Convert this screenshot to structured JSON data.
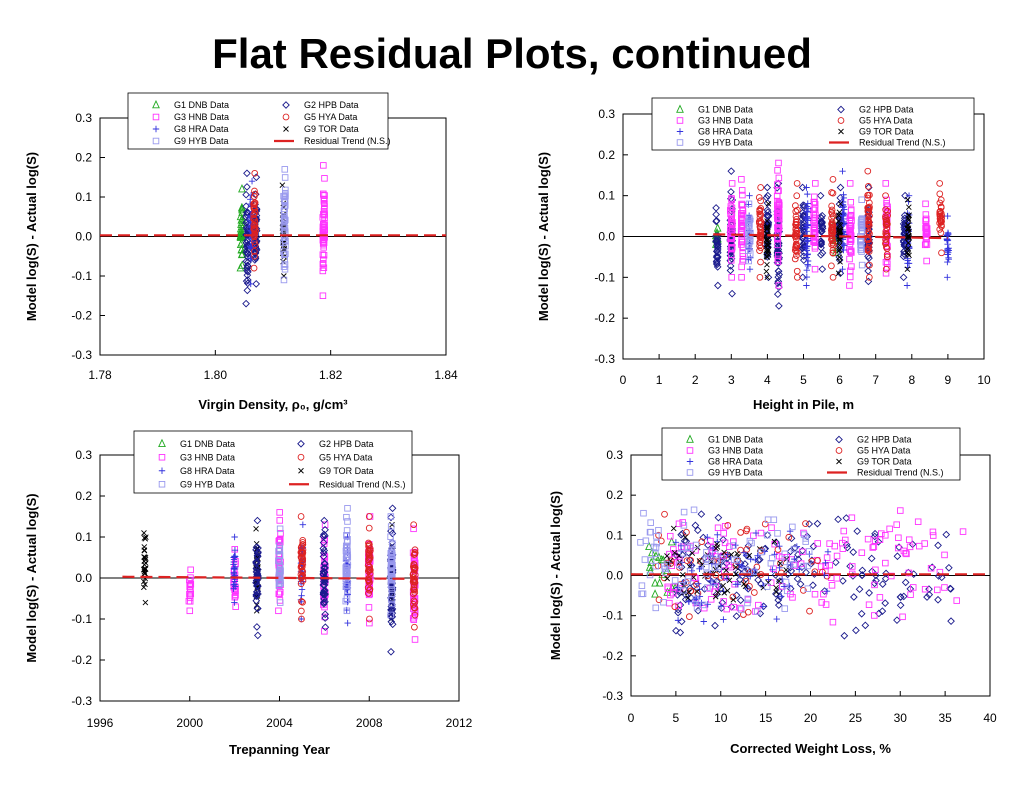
{
  "slide": {
    "title": "Flat Residual Plots, continued"
  },
  "colors": {
    "G1": "#22aa22",
    "G2": "#1a1a8c",
    "G3": "#ff33ff",
    "G8": "#3333dd",
    "G5": "#dd2222",
    "G9TOR": "#000000",
    "G9HYB": "#9999ee",
    "trend": "#dd2222"
  },
  "legend": [
    {
      "key": "G1",
      "label": "G1 DNB Data",
      "marker": "triangle"
    },
    {
      "key": "G2",
      "label": "G2 HPB Data",
      "marker": "diamond"
    },
    {
      "key": "G3",
      "label": "G3 HNB Data",
      "marker": "square"
    },
    {
      "key": "G5",
      "label": "G5 HYA Data",
      "marker": "circle"
    },
    {
      "key": "G8",
      "label": "G8 HRA Data",
      "marker": "plus"
    },
    {
      "key": "G9TOR",
      "label": "G9 TOR Data",
      "marker": "x"
    },
    {
      "key": "G9HYB",
      "label": "G9 HYB Data",
      "marker": "square"
    },
    {
      "key": "trend",
      "label": "Residual Trend (N.S.)",
      "marker": "dash"
    }
  ],
  "chart_data": [
    {
      "type": "scatter",
      "title": "",
      "xlabel": "Virgin Density, ρ₀, g/cm³",
      "ylabel": "Model log(S) - Actual log(S)",
      "xlim": [
        1.78,
        1.84
      ],
      "ylim": [
        -0.3,
        0.3
      ],
      "xticks": [
        "1.78",
        "1.80",
        "1.82",
        "1.84"
      ],
      "yticks": [
        "-0.3",
        "-0.2",
        "-0.1",
        "0.0",
        "0.1",
        "0.2",
        "0.3"
      ],
      "legend_position": "top",
      "series": [
        {
          "key": "G1",
          "columns": [
            {
              "x": 1.8045,
              "ymin": -0.08,
              "ymax": 0.12
            }
          ]
        },
        {
          "key": "G2",
          "columns": [
            {
              "x": 1.8055,
              "ymin": -0.17,
              "ymax": 0.16
            },
            {
              "x": 1.807,
              "ymin": -0.12,
              "ymax": 0.15
            }
          ]
        },
        {
          "key": "G8",
          "columns": [
            {
              "x": 1.8062,
              "ymin": -0.12,
              "ymax": 0.14
            }
          ]
        },
        {
          "key": "G5",
          "columns": [
            {
              "x": 1.8068,
              "ymin": -0.08,
              "ymax": 0.16
            }
          ]
        },
        {
          "key": "G9TOR",
          "columns": [
            {
              "x": 1.8118,
              "ymin": -0.1,
              "ymax": 0.13
            }
          ]
        },
        {
          "key": "G9HYB",
          "columns": [
            {
              "x": 1.812,
              "ymin": -0.11,
              "ymax": 0.17
            }
          ]
        },
        {
          "key": "G3",
          "columns": [
            {
              "x": 1.8188,
              "ymin": -0.15,
              "ymax": 0.18
            }
          ]
        }
      ],
      "trend": [
        {
          "x": 1.78,
          "y": 0.003
        },
        {
          "x": 1.84,
          "y": 0.003
        }
      ]
    },
    {
      "type": "scatter",
      "title": "",
      "xlabel": "Height in Pile, m",
      "ylabel": "Model log(S) - Actual log(S)",
      "xlim": [
        0,
        10
      ],
      "ylim": [
        -0.3,
        0.3
      ],
      "xticks": [
        "0",
        "1",
        "2",
        "3",
        "4",
        "5",
        "6",
        "7",
        "8",
        "9",
        "10"
      ],
      "yticks": [
        "-0.3",
        "-0.2",
        "-0.1",
        "0.0",
        "0.1",
        "0.2",
        "0.3"
      ],
      "legend_position": "top-right",
      "series": [
        {
          "key": "G1",
          "columns": [
            {
              "x": 2.6,
              "ymin": -0.02,
              "ymax": 0.02
            },
            {
              "x": 5.9,
              "ymin": -0.04,
              "ymax": 0.04
            }
          ]
        },
        {
          "key": "G2",
          "columns": [
            {
              "x": 2.6,
              "ymin": -0.12,
              "ymax": 0.07
            },
            {
              "x": 3.0,
              "ymin": -0.14,
              "ymax": 0.16
            },
            {
              "x": 4.0,
              "ymin": -0.1,
              "ymax": 0.12
            },
            {
              "x": 4.3,
              "ymin": -0.17,
              "ymax": 0.13
            },
            {
              "x": 5.0,
              "ymin": -0.1,
              "ymax": 0.12
            },
            {
              "x": 5.5,
              "ymin": -0.08,
              "ymax": 0.1
            },
            {
              "x": 6.0,
              "ymin": -0.09,
              "ymax": 0.12
            },
            {
              "x": 6.8,
              "ymin": -0.11,
              "ymax": 0.12
            },
            {
              "x": 7.8,
              "ymin": -0.1,
              "ymax": 0.1
            }
          ]
        },
        {
          "key": "G3",
          "columns": [
            {
              "x": 3.0,
              "ymin": -0.1,
              "ymax": 0.13
            },
            {
              "x": 3.3,
              "ymin": -0.1,
              "ymax": 0.14
            },
            {
              "x": 4.3,
              "ymin": -0.12,
              "ymax": 0.18
            },
            {
              "x": 5.3,
              "ymin": -0.08,
              "ymax": 0.13
            },
            {
              "x": 6.3,
              "ymin": -0.12,
              "ymax": 0.13
            },
            {
              "x": 7.3,
              "ymin": -0.09,
              "ymax": 0.13
            },
            {
              "x": 8.4,
              "ymin": -0.06,
              "ymax": 0.08
            }
          ]
        },
        {
          "key": "G5",
          "columns": [
            {
              "x": 3.8,
              "ymin": -0.1,
              "ymax": 0.12
            },
            {
              "x": 4.8,
              "ymin": -0.1,
              "ymax": 0.13
            },
            {
              "x": 5.8,
              "ymin": -0.1,
              "ymax": 0.14
            },
            {
              "x": 6.8,
              "ymin": -0.1,
              "ymax": 0.16
            },
            {
              "x": 7.3,
              "ymin": -0.08,
              "ymax": 0.1
            },
            {
              "x": 8.8,
              "ymin": -0.04,
              "ymax": 0.13
            }
          ]
        },
        {
          "key": "G8",
          "columns": [
            {
              "x": 3.5,
              "ymin": -0.08,
              "ymax": 0.1
            },
            {
              "x": 5.1,
              "ymin": -0.12,
              "ymax": 0.12
            },
            {
              "x": 6.1,
              "ymin": -0.08,
              "ymax": 0.16
            },
            {
              "x": 7.9,
              "ymin": -0.12,
              "ymax": 0.1
            },
            {
              "x": 9.0,
              "ymin": -0.1,
              "ymax": 0.05
            }
          ]
        },
        {
          "key": "G9TOR",
          "columns": [
            {
              "x": 4.0,
              "ymin": -0.1,
              "ymax": 0.08
            },
            {
              "x": 6.0,
              "ymin": -0.09,
              "ymax": 0.08
            },
            {
              "x": 7.9,
              "ymin": -0.08,
              "ymax": 0.09
            }
          ]
        },
        {
          "key": "G9HYB",
          "columns": [
            {
              "x": 3.5,
              "ymin": -0.06,
              "ymax": 0.08
            },
            {
              "x": 6.6,
              "ymin": -0.07,
              "ymax": 0.09
            }
          ]
        }
      ],
      "trend": [
        {
          "x": 2.0,
          "y": 0.006
        },
        {
          "x": 9.0,
          "y": -0.004
        }
      ]
    },
    {
      "type": "scatter",
      "title": "",
      "xlabel": "Trepanning Year",
      "ylabel": "Model log(S) - Actual log(S)",
      "xlim": [
        1996,
        2012
      ],
      "ylim": [
        -0.3,
        0.3
      ],
      "xticks": [
        "1996",
        "2000",
        "2004",
        "2008",
        "2012"
      ],
      "yticks": [
        "-0.3",
        "-0.2",
        "-0.1",
        "0.0",
        "0.1",
        "0.2",
        "0.3"
      ],
      "legend_position": "top",
      "series": [
        {
          "key": "G9TOR",
          "columns": [
            {
              "x": 1998,
              "ymin": -0.06,
              "ymax": 0.11
            },
            {
              "x": 2003,
              "ymin": -0.08,
              "ymax": 0.12
            },
            {
              "x": 2009,
              "ymin": -0.1,
              "ymax": 0.13
            }
          ]
        },
        {
          "key": "G3",
          "columns": [
            {
              "x": 2000,
              "ymin": -0.08,
              "ymax": 0.02
            },
            {
              "x": 2002,
              "ymin": -0.07,
              "ymax": 0.07
            },
            {
              "x": 2004,
              "ymin": -0.08,
              "ymax": 0.16
            },
            {
              "x": 2006,
              "ymin": -0.13,
              "ymax": 0.13
            },
            {
              "x": 2008,
              "ymin": -0.11,
              "ymax": 0.15
            },
            {
              "x": 2010,
              "ymin": -0.15,
              "ymax": 0.12
            }
          ]
        },
        {
          "key": "G2",
          "columns": [
            {
              "x": 2003,
              "ymin": -0.14,
              "ymax": 0.14
            },
            {
              "x": 2006,
              "ymin": -0.12,
              "ymax": 0.14
            },
            {
              "x": 2009,
              "ymin": -0.18,
              "ymax": 0.17
            }
          ]
        },
        {
          "key": "G8",
          "columns": [
            {
              "x": 2002,
              "ymin": -0.06,
              "ymax": 0.1
            },
            {
              "x": 2005,
              "ymin": -0.1,
              "ymax": 0.13
            },
            {
              "x": 2007,
              "ymin": -0.11,
              "ymax": 0.1
            }
          ]
        },
        {
          "key": "G5",
          "columns": [
            {
              "x": 2005,
              "ymin": -0.1,
              "ymax": 0.15
            },
            {
              "x": 2008,
              "ymin": -0.1,
              "ymax": 0.15
            },
            {
              "x": 2010,
              "ymin": -0.12,
              "ymax": 0.13
            }
          ]
        },
        {
          "key": "G9HYB",
          "columns": [
            {
              "x": 2004,
              "ymin": -0.06,
              "ymax": 0.12
            },
            {
              "x": 2007,
              "ymin": -0.08,
              "ymax": 0.17
            },
            {
              "x": 2009,
              "ymin": -0.09,
              "ymax": 0.15
            }
          ]
        },
        {
          "key": "G1",
          "columns": []
        }
      ],
      "trend": [
        {
          "x": 1997,
          "y": 0.003
        },
        {
          "x": 2010,
          "y": -0.002
        }
      ]
    },
    {
      "type": "scatter",
      "title": "",
      "xlabel": "Corrected Weight Loss, %",
      "ylabel": "Model log(S) - Actual log(S)",
      "xlim": [
        0,
        40
      ],
      "ylim": [
        -0.3,
        0.3
      ],
      "xticks": [
        "0",
        "5",
        "10",
        "15",
        "20",
        "25",
        "30",
        "35",
        "40"
      ],
      "yticks": [
        "-0.3",
        "-0.2",
        "-0.1",
        "0.0",
        "0.1",
        "0.2",
        "0.3"
      ],
      "legend_position": "top",
      "series": [
        {
          "key": "G1",
          "cloud": {
            "xmin": 2,
            "xmax": 5,
            "ymin": -0.06,
            "ymax": 0.1,
            "n": 18
          }
        },
        {
          "key": "G2",
          "cloud": {
            "xmin": 5,
            "xmax": 36,
            "ymin": -0.17,
            "ymax": 0.16,
            "n": 170
          }
        },
        {
          "key": "G3",
          "cloud": {
            "xmin": 4,
            "xmax": 37,
            "ymin": -0.14,
            "ymax": 0.18,
            "n": 140
          }
        },
        {
          "key": "G5",
          "cloud": {
            "xmin": 3,
            "xmax": 22,
            "ymin": -0.12,
            "ymax": 0.16,
            "n": 60
          }
        },
        {
          "key": "G8",
          "cloud": {
            "xmin": 5,
            "xmax": 22,
            "ymin": -0.13,
            "ymax": 0.14,
            "n": 80
          }
        },
        {
          "key": "G9TOR",
          "cloud": {
            "xmin": 4,
            "xmax": 18,
            "ymin": -0.1,
            "ymax": 0.13,
            "n": 60
          }
        },
        {
          "key": "G9HYB",
          "cloud": {
            "xmin": 1,
            "xmax": 20,
            "ymin": -0.1,
            "ymax": 0.17,
            "n": 90
          }
        }
      ],
      "trend": [
        {
          "x": 0,
          "y": 0.003
        },
        {
          "x": 40,
          "y": 0.003
        }
      ]
    }
  ]
}
